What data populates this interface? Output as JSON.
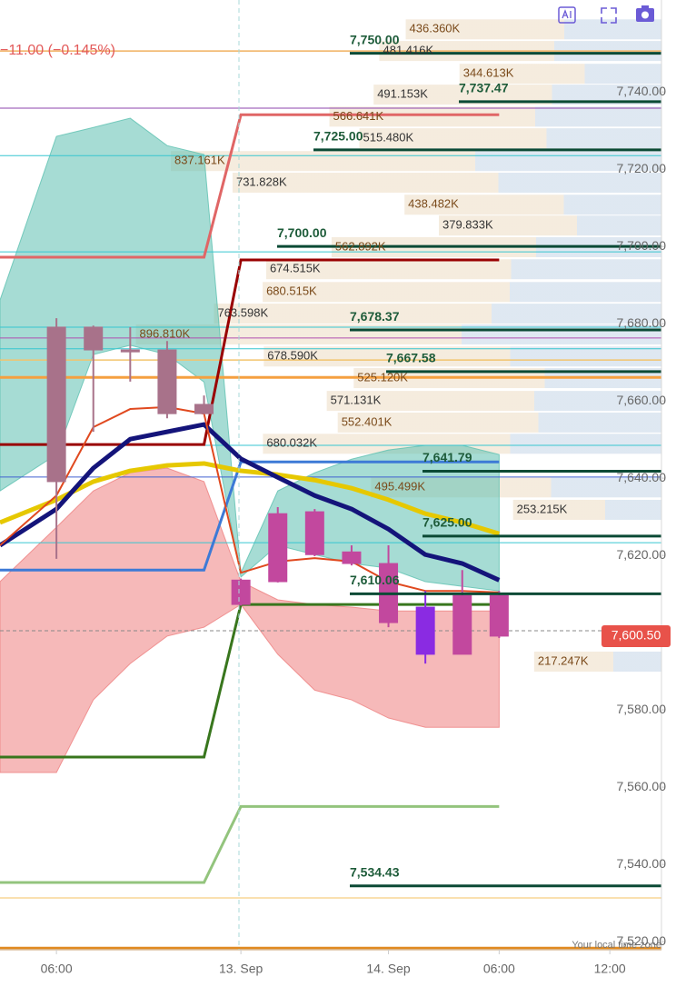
{
  "chart_data": {
    "type": "candlestick",
    "change": "−11.00 (−0.145%)",
    "timezone_note": "Your local time zone",
    "x": [
      0,
      1,
      2,
      3,
      4,
      5,
      6,
      7,
      8,
      9,
      10,
      11,
      12
    ],
    "open": [
      7639.1,
      7679.1,
      7673.2,
      7673.2,
      7659.1,
      7613.6,
      7613.2,
      7620.2,
      7620.9,
      7617.9,
      7606.6,
      7594.4,
      7599.1
    ],
    "high": [
      7681.4,
      7679.5,
      7679.1,
      7675.5,
      7661.4,
      7614.0,
      7632.5,
      7632.0,
      7622.6,
      7622.6,
      7610.8,
      7616.2,
      7610.8
    ],
    "low": [
      7619.1,
      7652.0,
      7665.0,
      7655.5,
      7656.7,
      7607.0,
      7613.0,
      7619.8,
      7617.4,
      7601.4,
      7592.0,
      7594.4,
      7598.6
    ],
    "close": [
      7679.1,
      7673.2,
      7672.7,
      7656.7,
      7656.7,
      7607.3,
      7630.8,
      7631.3,
      7617.9,
      7602.6,
      7594.4,
      7609.6,
      7609.6
    ],
    "colors": [
      "#a8728a",
      "#a8728a",
      "#a8728a",
      "#a8728a",
      "#a8728a",
      "#c2489e",
      "#c2489e",
      "#c2489e",
      "#c2489e",
      "#c2489e",
      "#8a2be2",
      "#c2489e",
      "#c2489e"
    ],
    "xlim": [
      -1.53,
      16.4
    ],
    "xticks": [
      {
        "value": 0,
        "label": "06:00"
      },
      {
        "value": 5,
        "label": "13. Sep"
      },
      {
        "value": 9,
        "label": "14. Sep"
      },
      {
        "value": 12,
        "label": "06:00"
      },
      {
        "value": 15,
        "label": "12:00"
      }
    ],
    "ylim": [
      7517.9,
      7763.8
    ],
    "yticks": [
      {
        "value": 7520,
        "label": "7,520.00"
      },
      {
        "value": 7540,
        "label": "7,540.00"
      },
      {
        "value": 7560,
        "label": "7,560.00"
      },
      {
        "value": 7580,
        "label": "7,580.00"
      },
      {
        "value": 7600,
        "label": "7,600.00"
      },
      {
        "value": 7620,
        "label": "7,620.00"
      },
      {
        "value": 7640,
        "label": "7,640.00"
      },
      {
        "value": 7660,
        "label": "7,660.00"
      },
      {
        "value": 7680,
        "label": "7,680.00"
      },
      {
        "value": 7700,
        "label": "7,700.00"
      },
      {
        "value": 7720,
        "label": "7,720.00"
      },
      {
        "value": 7740,
        "label": "7,740.00"
      }
    ],
    "price_tag": {
      "value": 7600.5,
      "label": "7,600.50",
      "color": "#e8524a"
    },
    "bands": [
      {
        "color": "#5cc0b0",
        "x": [
          -1.53,
          0,
          1,
          2,
          3,
          4,
          5,
          6,
          7,
          8,
          9,
          10,
          11,
          12
        ],
        "upper": [
          7686.1,
          7728.5,
          7730.8,
          7733.2,
          7726.1,
          7723.8,
          7615.5,
          7636.7,
          7641.4,
          7644.9,
          7647.3,
          7648.5,
          7648.5,
          7646.1
        ],
        "lower": [
          7636.7,
          7646.1,
          7672.0,
          7674.4,
          7672.0,
          7664.9,
          7614.4,
          7622.6,
          7620.2,
          7617.9,
          7616.7,
          7613.2,
          7612.0,
          7610.8
        ]
      },
      {
        "color": "#ee7f7f",
        "x": [
          -1.53,
          0,
          1,
          2,
          3,
          4,
          5,
          6,
          7,
          8,
          9,
          10,
          11,
          12
        ],
        "upper": [
          7613.2,
          7627.3,
          7636.7,
          7641.4,
          7642.6,
          7639.1,
          7613.2,
          7608.5,
          7607.3,
          7606.6,
          7605.6,
          7605.6,
          7605.6,
          7605.6
        ],
        "lower": [
          7563.8,
          7563.8,
          7582.6,
          7592.0,
          7599.1,
          7601.4,
          7607.3,
          7594.4,
          7585.1,
          7582.6,
          7577.9,
          7575.5,
          7575.5,
          7575.5
        ]
      }
    ],
    "hlines": [
      {
        "value": 7750.6,
        "color": "#f0b060",
        "width": 1.5
      },
      {
        "value": 7735.8,
        "color": "#8e44ad",
        "width": 1
      },
      {
        "value": 7723.5,
        "color": "#37c6d0",
        "width": 1
      },
      {
        "value": 7698.6,
        "color": "#37c6d0",
        "width": 1
      },
      {
        "value": 7679.1,
        "color": "#37c6d0",
        "width": 1
      },
      {
        "value": 7676.3,
        "color": "#b04fb0",
        "width": 1
      },
      {
        "value": 7673.5,
        "color": "#37c6d0",
        "width": 1
      },
      {
        "value": 7670.6,
        "color": "#f2c46d",
        "width": 1.5
      },
      {
        "value": 7666.1,
        "color": "#f5a040",
        "width": 3
      },
      {
        "value": 7648.5,
        "color": "#37c6d0",
        "width": 1
      },
      {
        "value": 7640.3,
        "color": "#4060d0",
        "width": 1
      },
      {
        "value": 7623.3,
        "color": "#37c6d0",
        "width": 1
      },
      {
        "value": 7531.3,
        "color": "#f5c060",
        "width": 1
      },
      {
        "value": 7518.2,
        "color": "#e08a20",
        "width": 4
      }
    ],
    "steps": [
      {
        "color": "#e06666",
        "x": [
          -1.53,
          4,
          5,
          12
        ],
        "values": [
          7697.2,
          7697.2,
          7734.1,
          7734.1
        ]
      },
      {
        "color": "#990000",
        "x": [
          -1.53,
          4,
          5,
          12
        ],
        "values": [
          7648.7,
          7648.7,
          7696.5,
          7696.5
        ]
      },
      {
        "color": "#3d7ad6",
        "x": [
          -1.53,
          4,
          5,
          12
        ],
        "values": [
          7616.2,
          7616.2,
          7644.2,
          7644.2
        ]
      },
      {
        "color": "#38761d",
        "x": [
          -1.53,
          4,
          5,
          12
        ],
        "values": [
          7567.8,
          7567.8,
          7607.3,
          7607.3
        ]
      },
      {
        "color": "#93c47d",
        "x": [
          -1.53,
          4,
          5,
          12
        ],
        "values": [
          7535.3,
          7535.3,
          7555.0,
          7555.0
        ]
      }
    ],
    "lines": [
      {
        "color": "#e6c800",
        "width": 5,
        "x": [
          -1.53,
          0,
          1,
          2,
          3,
          4,
          5,
          6,
          7,
          8,
          9,
          10,
          11,
          12
        ],
        "values": [
          7628.5,
          7634.4,
          7639.1,
          7641.9,
          7643.3,
          7643.8,
          7641.9,
          7640.9,
          7639.5,
          7637.4,
          7634.4,
          7630.8,
          7628.5,
          7625.6
        ]
      },
      {
        "color": "#14147a",
        "width": 5,
        "x": [
          -1.53,
          0,
          1,
          2,
          3,
          4,
          5,
          6,
          7,
          8,
          9,
          10,
          11,
          12
        ],
        "values": [
          7622.6,
          7632.0,
          7642.6,
          7650.1,
          7652.0,
          7653.9,
          7645.0,
          7640.2,
          7635.5,
          7632.0,
          7626.8,
          7620.2,
          7617.9,
          7613.6
        ]
      },
      {
        "color": "#e0491f",
        "width": 2,
        "x": [
          -1.53,
          0,
          1,
          2,
          3,
          4,
          5,
          6,
          7,
          8,
          9,
          10,
          11,
          12
        ],
        "values": [
          7622.6,
          7635.5,
          7653.2,
          7657.9,
          7658.4,
          7656.7,
          7615.5,
          7618.4,
          7619.3,
          7618.4,
          7613.2,
          7610.8,
          7610.8,
          7610.4
        ]
      }
    ],
    "levels": [
      {
        "value": 7750,
        "label": "7,750.00"
      },
      {
        "value": 7737.47,
        "label": "7,737.47"
      },
      {
        "value": 7725,
        "label": "7,725.00"
      },
      {
        "value": 7700,
        "label": "7,700.00"
      },
      {
        "value": 7678.37,
        "label": "7,678.37"
      },
      {
        "value": 7667.58,
        "label": "7,667.58"
      },
      {
        "value": 7641.79,
        "label": "7,641.79"
      },
      {
        "value": 7625,
        "label": "7,625.00"
      },
      {
        "value": 7610.06,
        "label": "7,610.06"
      },
      {
        "value": 7534.43,
        "label": "7,534.43"
      }
    ],
    "volume_profile": {
      "prices": [
        7756.2,
        7750.6,
        7744.7,
        7739.3,
        7733.6,
        7728.0,
        7722.1,
        7716.5,
        7710.8,
        7705.4,
        7699.8,
        7694.1,
        7688.2,
        7682.6,
        7677.2,
        7671.5,
        7665.9,
        7660.0,
        7654.4,
        7648.9,
        7637.6,
        7631.8,
        7592.5
      ],
      "values": [
        436360,
        481416,
        344613,
        491153,
        566641,
        515480,
        837161,
        731828,
        438482,
        379833,
        562892,
        674515,
        680515,
        763598,
        896810,
        678590,
        525120,
        571131,
        552401,
        680032,
        495499,
        253215,
        217247
      ],
      "value_labels": [
        "436.360K",
        "481.416K",
        "344.613K",
        "491.153K",
        "566.641K",
        "515.480K",
        "837.161K",
        "731.828K",
        "438.482K",
        "379.833K",
        "562.892K",
        "674.515K",
        "680.515K",
        "763.598K",
        "896.810K",
        "678.590K",
        "525.120K",
        "571.131K",
        "552.401K",
        "680.032K",
        "495.499K",
        "253.215K",
        "217.247K"
      ]
    }
  }
}
